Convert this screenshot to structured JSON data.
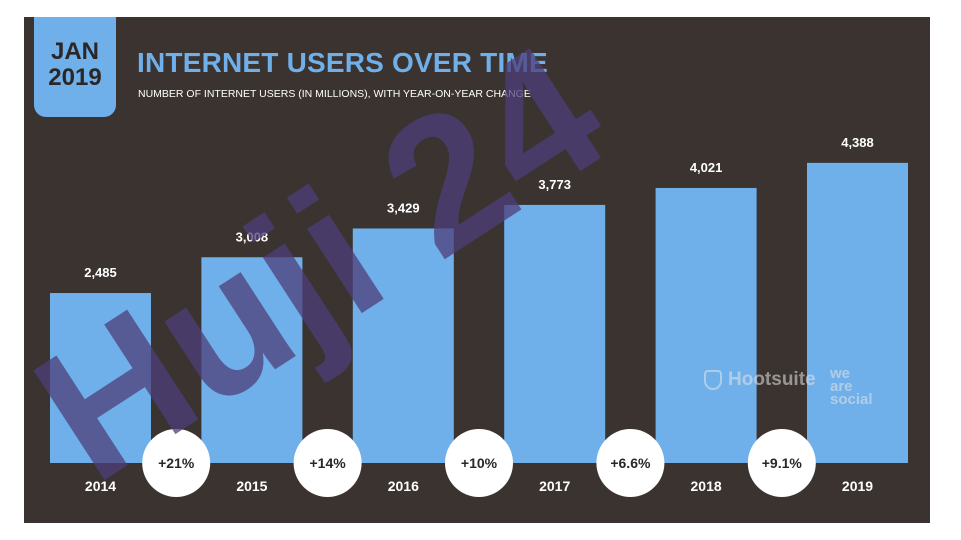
{
  "header": {
    "badge_month": "JAN",
    "badge_year": "2019",
    "title": "INTERNET USERS OVER TIME",
    "subtitle": "NUMBER OF INTERNET USERS (IN MILLIONS), WITH YEAR-ON-YEAR CHANGE"
  },
  "branding": {
    "hootsuite": "Hootsuite",
    "wearesocial_lines": [
      "we",
      "are",
      "social"
    ],
    "watermark": "Huji 24",
    "hootsuite_icon": "owl-icon"
  },
  "colors": {
    "background": "#3a3330",
    "bar": "#6fb0ea",
    "accent": "#6fb0ea",
    "watermark": "#4d3f7a"
  },
  "chart_data": {
    "type": "bar",
    "title": "INTERNET USERS OVER TIME",
    "subtitle": "NUMBER OF INTERNET USERS (IN MILLIONS), WITH YEAR-ON-YEAR CHANGE",
    "categories": [
      "2014",
      "2015",
      "2016",
      "2017",
      "2018",
      "2019"
    ],
    "values": [
      2485,
      3008,
      3429,
      3773,
      4021,
      4388
    ],
    "value_labels": [
      "2,485",
      "3,008",
      "3,429",
      "3,773",
      "4,021",
      "4,388"
    ],
    "yoy_change": [
      "+21%",
      "+14%",
      "+10%",
      "+6.6%",
      "+9.1%"
    ],
    "xlabel": "",
    "ylabel": "",
    "grid": false,
    "legend": "none"
  }
}
